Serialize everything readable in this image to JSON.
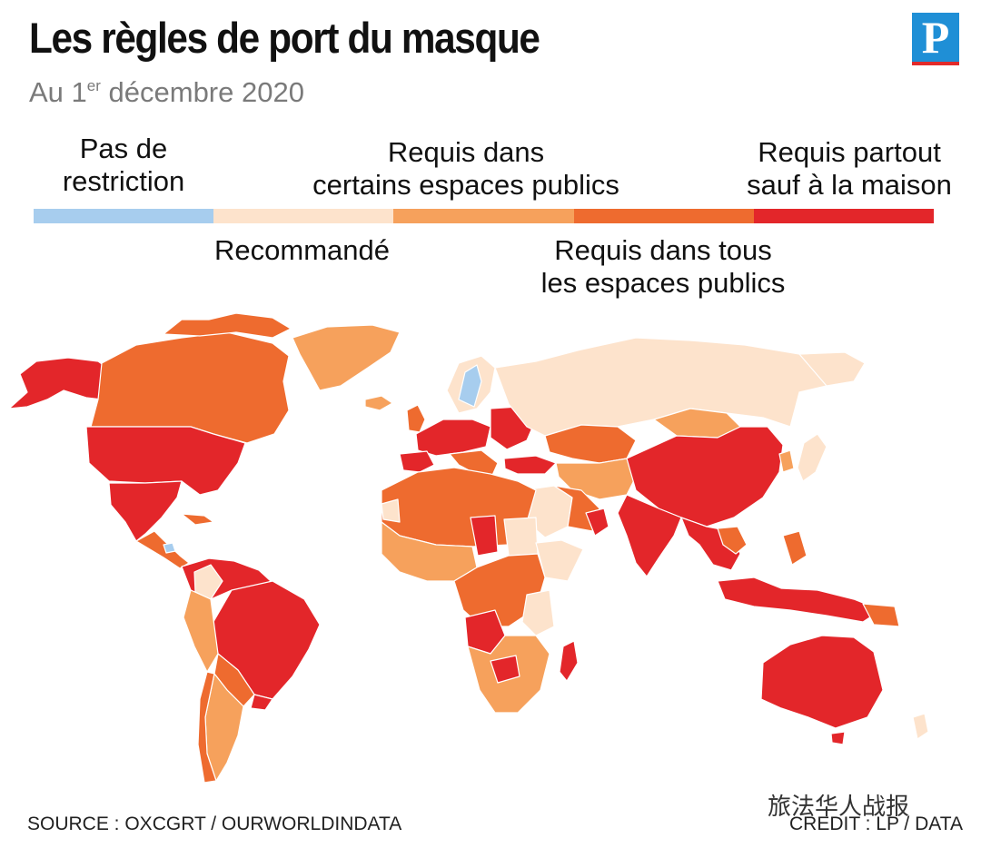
{
  "header": {
    "title": "Les règles de port du masque",
    "subtitle_prefix": "Au 1",
    "subtitle_sup": "er",
    "subtitle_suffix": " décembre 2020",
    "logo_letter": "P"
  },
  "legend": {
    "categories": [
      {
        "label_line1": "Pas de",
        "label_line2": "restriction",
        "color": "#a7cdee"
      },
      {
        "label_line1": "Recommandé",
        "label_line2": "",
        "color": "#fde3cc"
      },
      {
        "label_line1": "Requis dans",
        "label_line2": "certains espaces publics",
        "color": "#f6a15c"
      },
      {
        "label_line1": "Requis dans tous",
        "label_line2": "les espaces publics",
        "color": "#ee6b2f"
      },
      {
        "label_line1": "Requis partout",
        "label_line2": "sauf à la maison",
        "color": "#e3262a"
      }
    ]
  },
  "footer": {
    "source": "SOURCE : OXCGRT / OURWORLDINDATA",
    "credit": "CREDIT : LP / DATA",
    "watermark": "旅法华人战报"
  }
}
